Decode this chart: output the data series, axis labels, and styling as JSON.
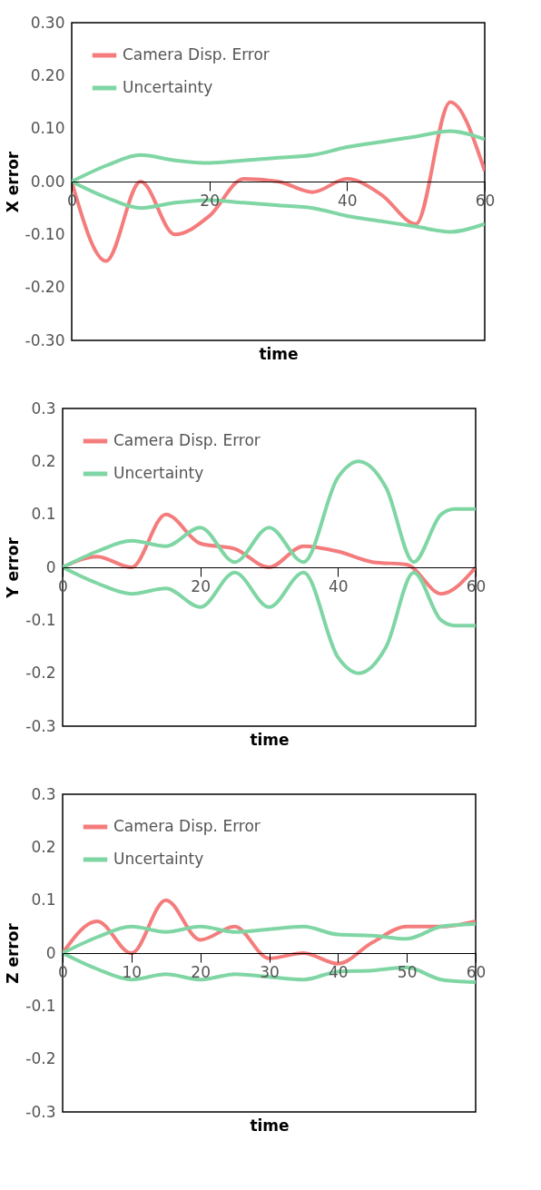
{
  "chart_data": [
    {
      "type": "line",
      "xlabel": "time",
      "ylabel": "X error",
      "legend": "top left",
      "x": [
        0,
        5,
        10,
        15,
        20,
        25,
        30,
        35,
        40,
        45,
        50,
        55,
        60
      ],
      "xlim": [
        0,
        60
      ],
      "xticks": [
        0,
        20,
        40,
        60
      ],
      "ylim": [
        -0.3,
        0.3
      ],
      "yticks": [
        {
          "value": -0.3,
          "label": "-0.30"
        },
        {
          "value": -0.2,
          "label": "-0.20"
        },
        {
          "value": -0.1,
          "label": "-0.10"
        },
        {
          "value": 0,
          "label": "0.00"
        },
        {
          "value": 0.1,
          "label": "0.10"
        },
        {
          "value": 0.2,
          "label": "0.20"
        },
        {
          "value": 0.3,
          "label": "0.30"
        }
      ],
      "series": [
        {
          "name": "Camera Disp. Error",
          "color": "#f47c7c",
          "values": [
            0,
            -0.15,
            0,
            -0.1,
            -0.065,
            0.005,
            0,
            -0.02,
            0.005,
            -0.025,
            -0.08,
            0.15,
            0.02
          ]
        },
        {
          "name": "Uncertainty",
          "color": "#7fd6a4",
          "values": [
            0,
            0.03,
            0.05,
            0.04,
            0.035,
            0.04,
            0.045,
            0.05,
            0.065,
            0.075,
            0.085,
            0.095,
            0.08
          ]
        },
        {
          "color": "#7fd6a4",
          "values": [
            0,
            -0.03,
            -0.05,
            -0.04,
            -0.035,
            -0.04,
            -0.045,
            -0.05,
            -0.065,
            -0.075,
            -0.085,
            -0.095,
            -0.08
          ]
        }
      ]
    },
    {
      "type": "line",
      "xlabel": "time",
      "ylabel": "Y error",
      "legend": "top left",
      "xlim": [
        0,
        60
      ],
      "xticks": [
        0,
        20,
        40,
        60
      ],
      "ylim": [
        -0.3,
        0.3
      ],
      "yticks": [
        -0.3,
        -0.2,
        -0.1,
        0,
        0.1,
        0.2,
        0.3
      ],
      "series": [
        {
          "name": "Camera Disp. Error",
          "color": "#f47c7c",
          "x": [
            0,
            5,
            10,
            15,
            20,
            25,
            30,
            35,
            40,
            45,
            50,
            55,
            60
          ],
          "values": [
            0,
            0.02,
            0,
            0.1,
            0.045,
            0.035,
            0,
            0.04,
            0.03,
            0.01,
            0.005,
            -0.05,
            0
          ]
        },
        {
          "name": "Uncertainty",
          "color": "#7fd6a4",
          "x": [
            0,
            5,
            10,
            15,
            20,
            25,
            30,
            35,
            40,
            43,
            47,
            51,
            55,
            57,
            60
          ],
          "values": [
            0,
            0.03,
            0.05,
            0.04,
            0.075,
            0.01,
            0.075,
            0.01,
            0.17,
            0.2,
            0.15,
            0.01,
            0.1,
            0.11,
            0.11
          ]
        },
        {
          "color": "#7fd6a4",
          "x": [
            0,
            5,
            10,
            15,
            20,
            25,
            30,
            35,
            40,
            43,
            47,
            51,
            55,
            57,
            60
          ],
          "values": [
            0,
            -0.03,
            -0.05,
            -0.04,
            -0.075,
            -0.01,
            -0.075,
            -0.01,
            -0.17,
            -0.2,
            -0.15,
            -0.01,
            -0.1,
            -0.11,
            -0.11
          ]
        }
      ]
    },
    {
      "type": "line",
      "xlabel": "time",
      "ylabel": "Z error",
      "legend": "top left",
      "x": [
        0,
        5,
        10,
        15,
        20,
        25,
        30,
        35,
        40,
        45,
        50,
        55,
        60
      ],
      "xlim": [
        0,
        60
      ],
      "xticks": [
        0,
        10,
        20,
        30,
        40,
        50,
        60
      ],
      "ylim": [
        -0.3,
        0.3
      ],
      "yticks": [
        -0.3,
        -0.2,
        -0.1,
        0,
        0.1,
        0.2,
        0.3
      ],
      "series": [
        {
          "name": "Camera Disp. Error",
          "color": "#f47c7c",
          "values": [
            0,
            0.06,
            0,
            0.1,
            0.025,
            0.05,
            -0.01,
            0,
            -0.02,
            0.02,
            0.05,
            0.05,
            0.06
          ]
        },
        {
          "name": "Uncertainty",
          "color": "#7fd6a4",
          "values": [
            0,
            0.03,
            0.05,
            0.04,
            0.05,
            0.04,
            0.045,
            0.05,
            0.035,
            0.033,
            0.027,
            0.05,
            0.055
          ]
        },
        {
          "color": "#7fd6a4",
          "values": [
            0,
            -0.03,
            -0.05,
            -0.04,
            -0.05,
            -0.04,
            -0.045,
            -0.05,
            -0.035,
            -0.033,
            -0.027,
            -0.05,
            -0.055
          ]
        }
      ]
    }
  ]
}
